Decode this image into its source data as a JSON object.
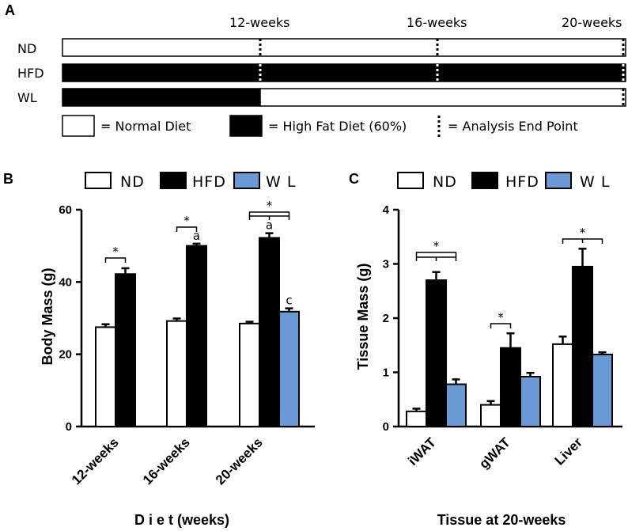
{
  "panel_a": {
    "letter": "A",
    "timepoints": [
      "12-weeks",
      "16-weeks",
      "20-weeks"
    ],
    "rows": [
      {
        "label": "ND",
        "segments": [
          {
            "from": 0,
            "to": 20,
            "diet": "normal"
          }
        ]
      },
      {
        "label": "HFD",
        "segments": [
          {
            "from": 0,
            "to": 20,
            "diet": "high_fat"
          }
        ]
      },
      {
        "label": "WL",
        "segments": [
          {
            "from": 0,
            "to": 12,
            "diet": "high_fat"
          },
          {
            "from": 12,
            "to": 20,
            "diet": "normal"
          }
        ]
      }
    ],
    "endpoints": [
      {
        "row": "ND",
        "weeks": [
          12,
          16,
          20
        ]
      },
      {
        "row": "HFD",
        "weeks": [
          12,
          16,
          20
        ]
      },
      {
        "row": "WL",
        "weeks": [
          20
        ]
      }
    ],
    "legend": {
      "normal": "= Normal Diet",
      "high_fat": "= High Fat Diet (60%)",
      "endpoint": "= Analysis End Point"
    }
  },
  "colors": {
    "ND": "#ffffff",
    "HFD": "#000000",
    "WL": "#6a9ad6"
  },
  "chart_data": [
    {
      "panel": "B",
      "type": "bar",
      "title": "",
      "legend": [
        "ND",
        "HFD",
        "W L"
      ],
      "ylabel": "Body Mass (g)",
      "xlabel": "D i e t (weeks)",
      "ylim": [
        0,
        60
      ],
      "yticks": [
        0,
        20,
        40,
        60
      ],
      "categories": [
        "12-weeks",
        "16-weeks",
        "20-weeks"
      ],
      "series": [
        {
          "name": "ND",
          "values": [
            27.5,
            29.2,
            28.5
          ],
          "errors": [
            0.8,
            0.7,
            0.5
          ]
        },
        {
          "name": "HFD",
          "values": [
            42.2,
            50.0,
            52.2
          ],
          "errors": [
            1.6,
            0.6,
            1.3
          ]
        },
        {
          "name": "WL",
          "values": [
            null,
            null,
            31.8
          ],
          "errors": [
            null,
            null,
            0.9
          ]
        }
      ],
      "annotations": {
        "stars": [
          "*",
          "*",
          "*"
        ],
        "letters": [
          {
            "category": "16-weeks",
            "series": "HFD",
            "text": "a"
          },
          {
            "category": "20-weeks",
            "series": "HFD",
            "text": "a"
          },
          {
            "category": "20-weeks",
            "series": "WL",
            "text": "c"
          }
        ]
      }
    },
    {
      "panel": "C",
      "type": "bar",
      "title": "",
      "legend": [
        "ND",
        "HFD",
        "W L"
      ],
      "ylabel": "Tissue Mass (g)",
      "xlabel": "Tissue at 20-weeks",
      "ylim": [
        0,
        4
      ],
      "yticks": [
        0,
        1,
        2,
        3,
        4
      ],
      "categories": [
        "iWAT",
        "gWAT",
        "Liver"
      ],
      "series": [
        {
          "name": "ND",
          "values": [
            0.28,
            0.4,
            1.52
          ],
          "errors": [
            0.05,
            0.07,
            0.14
          ]
        },
        {
          "name": "HFD",
          "values": [
            2.7,
            1.45,
            2.95
          ],
          "errors": [
            0.15,
            0.27,
            0.33
          ]
        },
        {
          "name": "WL",
          "values": [
            0.78,
            0.92,
            1.33
          ],
          "errors": [
            0.09,
            0.07,
            0.04
          ]
        }
      ],
      "annotations": {
        "stars": [
          "*",
          "*",
          "*"
        ]
      }
    }
  ]
}
